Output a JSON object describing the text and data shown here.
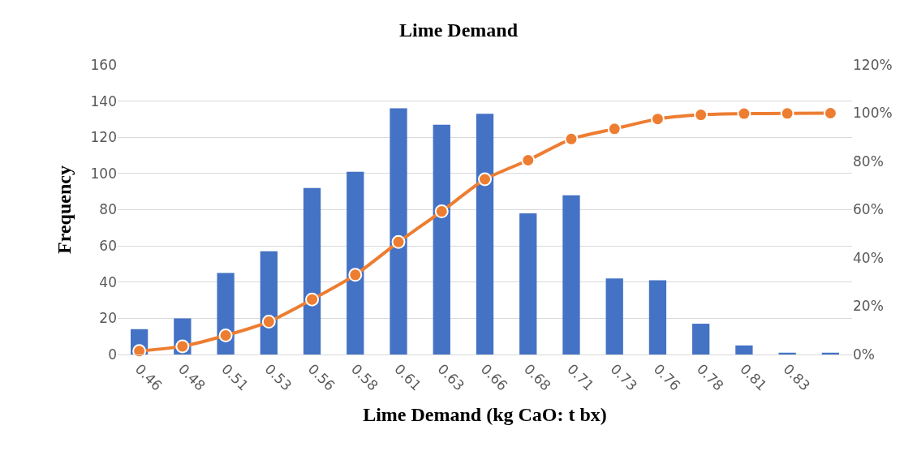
{
  "chart_data": {
    "type": "bar",
    "title": "Lime Demand",
    "xlabel": "Lime Demand (kg CaO: t bx)",
    "ylabel": "Frequency",
    "categories": [
      "0.46",
      "0.48",
      "0.51",
      "0.53",
      "0.56",
      "0.58",
      "0.61",
      "0.63",
      "0.66",
      "0.68",
      "0.71",
      "0.73",
      "0.76",
      "0.78",
      "0.81",
      "0.83",
      null
    ],
    "series": [
      {
        "color": "#4472c4",
        "values": [
          14,
          20,
          45,
          57,
          92,
          101,
          136,
          127,
          133,
          78,
          88,
          42,
          41,
          17,
          5,
          1,
          1
        ]
      },
      {
        "type": "line",
        "axis": "y2",
        "color": "#ed7d31",
        "marker": "circle",
        "line_style": "solid",
        "values": [
          1.4,
          3.4,
          7.9,
          13.6,
          22.8,
          33.0,
          46.6,
          59.3,
          72.6,
          80.5,
          89.3,
          93.5,
          97.6,
          99.3,
          99.8,
          99.9,
          100
        ]
      }
    ],
    "ylim": [
      0,
      160
    ],
    "yticks": [
      0,
      20,
      40,
      60,
      80,
      100,
      120,
      140,
      160
    ],
    "y2lim": [
      0,
      120
    ],
    "y2ticks": [
      {
        "value": 0,
        "label": "0%"
      },
      {
        "value": 20,
        "label": "20%"
      },
      {
        "value": 40,
        "label": "40%"
      },
      {
        "value": 60,
        "label": "60%"
      },
      {
        "value": 80,
        "label": "80%"
      },
      {
        "value": 100,
        "label": "100%"
      },
      {
        "value": 120,
        "label": "120%"
      }
    ],
    "grid": "y"
  }
}
